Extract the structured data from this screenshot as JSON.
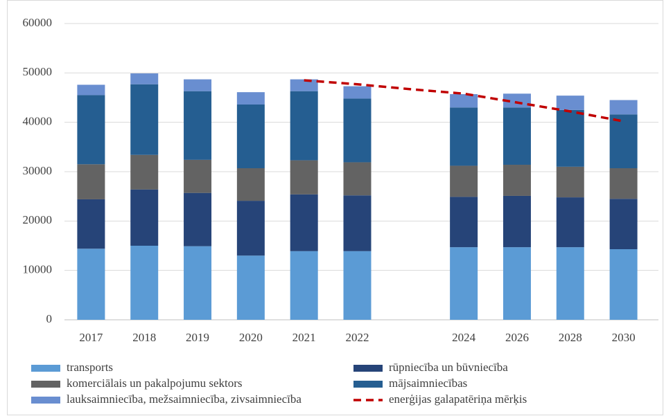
{
  "chart_data": {
    "type": "stacked_bar",
    "categories": [
      "2017",
      "2018",
      "2019",
      "2020",
      "2021",
      "2022",
      null,
      "2024",
      "2026",
      "2028",
      "2030"
    ],
    "ylim": [
      0,
      60000
    ],
    "yticks": [
      0,
      10000,
      20000,
      30000,
      40000,
      50000,
      60000
    ],
    "grid": true,
    "legend": "bottom",
    "series": [
      {
        "name": "transports",
        "color": "#5b9bd5",
        "values": [
          14400,
          15000,
          14900,
          13000,
          13900,
          13900,
          null,
          14700,
          14700,
          14700,
          14300
        ]
      },
      {
        "name": "rūpniecība un būvniecība",
        "color": "#264478",
        "values": [
          10000,
          11400,
          10800,
          11100,
          11500,
          11300,
          null,
          10200,
          10400,
          10100,
          10200
        ]
      },
      {
        "name": "komerciālais un pakalpojumu sektors",
        "color": "#636363",
        "values": [
          7100,
          7000,
          6700,
          6600,
          6900,
          6700,
          null,
          6300,
          6300,
          6200,
          6200
        ]
      },
      {
        "name": "mājsaimniecības",
        "color": "#255e91",
        "values": [
          14000,
          14300,
          13900,
          12900,
          14000,
          12900,
          null,
          11800,
          11600,
          11500,
          10900
        ]
      },
      {
        "name": "lauksaimniecība, mežsaimniecība, zivsaimniecība",
        "color": "#698ed0",
        "values": [
          2100,
          2200,
          2400,
          2500,
          2400,
          2500,
          null,
          2700,
          2800,
          2900,
          2900
        ]
      },
      {
        "name": "enerģijas galapatēriņa mērķis",
        "color": "#c00000",
        "type": "line",
        "line_style": "dashed",
        "values": [
          null,
          null,
          null,
          null,
          48500,
          47700,
          46700,
          45800,
          44000,
          42200,
          40200
        ]
      }
    ]
  }
}
